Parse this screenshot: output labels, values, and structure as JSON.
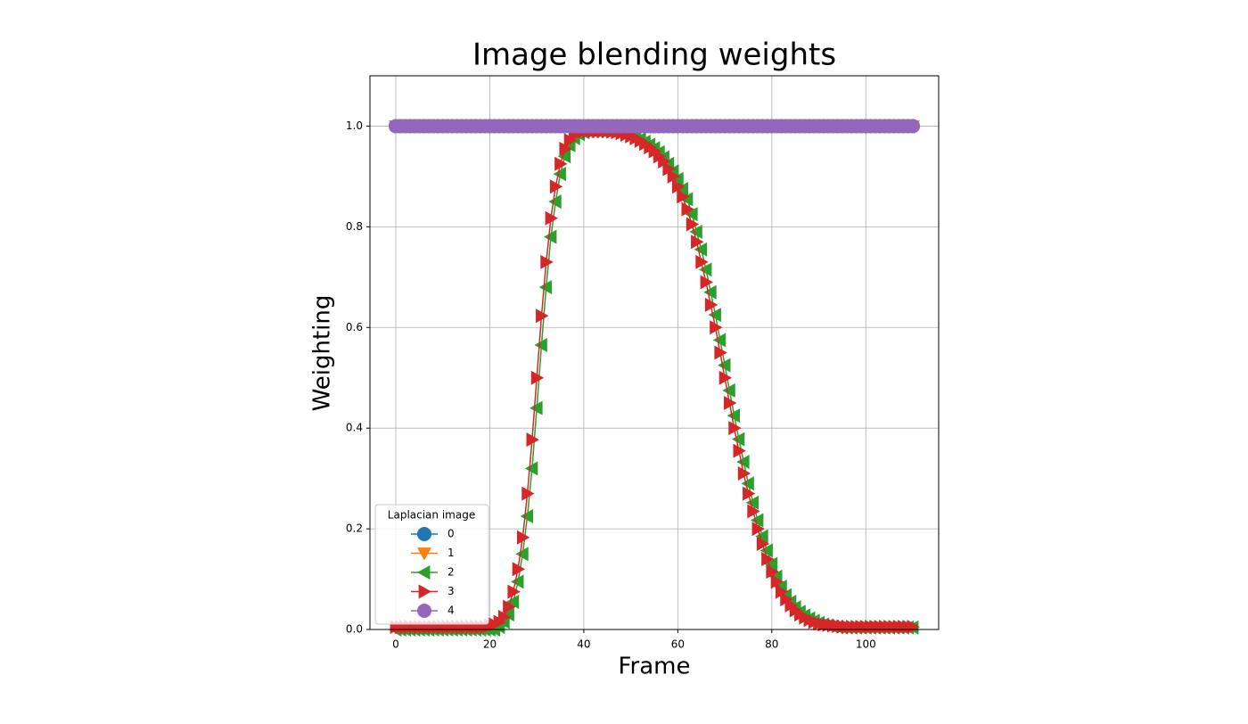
{
  "chart_data": {
    "type": "line",
    "title": "Image blending weights",
    "x_label": "Frame",
    "y_label": "Weighting",
    "x": [
      0,
      1,
      2,
      3,
      4,
      5,
      6,
      7,
      8,
      9,
      10,
      11,
      12,
      13,
      14,
      15,
      16,
      17,
      18,
      19,
      20,
      21,
      22,
      23,
      24,
      25,
      26,
      27,
      28,
      29,
      30,
      31,
      32,
      33,
      34,
      35,
      36,
      37,
      38,
      39,
      40,
      41,
      42,
      43,
      44,
      45,
      46,
      47,
      48,
      49,
      50,
      51,
      52,
      53,
      54,
      55,
      56,
      57,
      58,
      59,
      60,
      61,
      62,
      63,
      64,
      65,
      66,
      67,
      68,
      69,
      70,
      71,
      72,
      73,
      74,
      75,
      76,
      77,
      78,
      79,
      80,
      81,
      82,
      83,
      84,
      85,
      86,
      87,
      88,
      89,
      90,
      91,
      92,
      93,
      94,
      95,
      96,
      97,
      98,
      99,
      100,
      101,
      102,
      103,
      104,
      105,
      106,
      107,
      108,
      109,
      110
    ],
    "series": [
      {
        "name": "0",
        "color": "#1f77b4",
        "marker": "o",
        "values": [
          1,
          1,
          1,
          1,
          1,
          1,
          1,
          1,
          1,
          1,
          1,
          1,
          1,
          1,
          1,
          1,
          1,
          1,
          1,
          1,
          1,
          1,
          1,
          1,
          1,
          1,
          1,
          1,
          1,
          1,
          1,
          1,
          1,
          1,
          1,
          1,
          1,
          1,
          1,
          1,
          1,
          1,
          1,
          1,
          1,
          1,
          1,
          1,
          1,
          1,
          1,
          1,
          1,
          1,
          1,
          1,
          1,
          1,
          1,
          1,
          1,
          1,
          1,
          1,
          1,
          1,
          1,
          1,
          1,
          1,
          1,
          1,
          1,
          1,
          1,
          1,
          1,
          1,
          1,
          1,
          1,
          1,
          1,
          1,
          1,
          1,
          1,
          1,
          1,
          1,
          1,
          1,
          1,
          1,
          1,
          1,
          1,
          1,
          1,
          1,
          1,
          1,
          1,
          1,
          1,
          1,
          1,
          1,
          1,
          1,
          1
        ]
      },
      {
        "name": "1",
        "color": "#ff7f0e",
        "marker": "v",
        "values": [
          1,
          1,
          1,
          1,
          1,
          1,
          1,
          1,
          1,
          1,
          1,
          1,
          1,
          1,
          1,
          1,
          1,
          1,
          1,
          1,
          1,
          1,
          1,
          1,
          1,
          1,
          1,
          1,
          1,
          1,
          1,
          1,
          1,
          1,
          1,
          1,
          1,
          1,
          1,
          1,
          1,
          1,
          1,
          1,
          1,
          1,
          1,
          1,
          1,
          1,
          1,
          1,
          1,
          1,
          1,
          1,
          1,
          1,
          1,
          1,
          1,
          1,
          1,
          1,
          1,
          1,
          1,
          1,
          1,
          1,
          1,
          1,
          1,
          1,
          1,
          1,
          1,
          1,
          1,
          1,
          1,
          1,
          1,
          1,
          1,
          1,
          1,
          1,
          1,
          1,
          1,
          1,
          1,
          1,
          1,
          1,
          1,
          1,
          1,
          1,
          1,
          1,
          1,
          1,
          1,
          1,
          1,
          1,
          1,
          1,
          1
        ]
      },
      {
        "name": "2",
        "color": "#2ca02c",
        "marker": "<",
        "values": [
          0,
          0,
          0,
          0,
          0,
          0,
          0,
          0,
          0,
          0,
          0,
          0,
          0,
          0,
          0,
          0,
          0,
          0,
          0,
          0,
          0,
          0,
          0.005,
          0.015,
          0.03,
          0.055,
          0.095,
          0.15,
          0.225,
          0.32,
          0.44,
          0.565,
          0.68,
          0.78,
          0.85,
          0.905,
          0.94,
          0.962,
          0.976,
          0.984,
          0.988,
          0.99,
          0.99,
          0.99,
          0.99,
          0.99,
          0.99,
          0.989,
          0.987,
          0.985,
          0.982,
          0.978,
          0.974,
          0.969,
          0.963,
          0.956,
          0.948,
          0.938,
          0.925,
          0.91,
          0.895,
          0.875,
          0.855,
          0.825,
          0.79,
          0.755,
          0.715,
          0.67,
          0.625,
          0.575,
          0.525,
          0.475,
          0.425,
          0.378,
          0.333,
          0.29,
          0.252,
          0.217,
          0.185,
          0.157,
          0.13,
          0.105,
          0.085,
          0.068,
          0.055,
          0.044,
          0.035,
          0.028,
          0.022,
          0.017,
          0.013,
          0.01,
          0.008,
          0.006,
          0.005,
          0.004,
          0.004,
          0.004,
          0.004,
          0.004,
          0.004,
          0.004,
          0.004,
          0.004,
          0.004,
          0.004,
          0.004,
          0.004,
          0.004,
          0.004,
          0.004
        ]
      },
      {
        "name": "3",
        "color": "#d62728",
        "marker": ">",
        "values": [
          0.005,
          0.005,
          0.005,
          0.005,
          0.005,
          0.005,
          0.005,
          0.005,
          0.005,
          0.005,
          0.005,
          0.005,
          0.005,
          0.005,
          0.005,
          0.005,
          0.005,
          0.005,
          0.005,
          0.005,
          0.008,
          0.01,
          0.015,
          0.025,
          0.045,
          0.075,
          0.12,
          0.183,
          0.27,
          0.377,
          0.5,
          0.623,
          0.73,
          0.817,
          0.88,
          0.925,
          0.955,
          0.972,
          0.982,
          0.988,
          0.99,
          0.99,
          0.99,
          0.99,
          0.99,
          0.99,
          0.989,
          0.988,
          0.986,
          0.983,
          0.98,
          0.976,
          0.971,
          0.965,
          0.958,
          0.95,
          0.94,
          0.93,
          0.915,
          0.9,
          0.88,
          0.86,
          0.835,
          0.805,
          0.77,
          0.73,
          0.69,
          0.645,
          0.6,
          0.55,
          0.5,
          0.45,
          0.4,
          0.355,
          0.31,
          0.27,
          0.235,
          0.2,
          0.17,
          0.14,
          0.115,
          0.095,
          0.075,
          0.06,
          0.048,
          0.038,
          0.03,
          0.024,
          0.019,
          0.015,
          0.012,
          0.01,
          0.009,
          0.008,
          0.007,
          0.006,
          0.005,
          0.005,
          0.005,
          0.005,
          0.005,
          0.005,
          0.005,
          0.005,
          0.005,
          0.005,
          0.005,
          0.005,
          0.005,
          0.005,
          0.005
        ]
      },
      {
        "name": "4",
        "color": "#9467bd",
        "marker": "o",
        "values": [
          1,
          1,
          1,
          1,
          1,
          1,
          1,
          1,
          1,
          1,
          1,
          1,
          1,
          1,
          1,
          1,
          1,
          1,
          1,
          1,
          1,
          1,
          1,
          1,
          1,
          1,
          1,
          1,
          1,
          1,
          1,
          1,
          1,
          1,
          1,
          1,
          1,
          1,
          1,
          1,
          1,
          1,
          1,
          1,
          1,
          1,
          1,
          1,
          1,
          1,
          1,
          1,
          1,
          1,
          1,
          1,
          1,
          1,
          1,
          1,
          1,
          1,
          1,
          1,
          1,
          1,
          1,
          1,
          1,
          1,
          1,
          1,
          1,
          1,
          1,
          1,
          1,
          1,
          1,
          1,
          1,
          1,
          1,
          1,
          1,
          1,
          1,
          1,
          1,
          1,
          1,
          1,
          1,
          1,
          1,
          1,
          1,
          1,
          1,
          1,
          1,
          1,
          1,
          1,
          1,
          1,
          1,
          1,
          1,
          1,
          1
        ]
      }
    ],
    "xlim": [
      -5.5,
      115.5
    ],
    "xticks": [
      0,
      20,
      40,
      60,
      80,
      100
    ],
    "ylim": [
      0,
      1.1
    ],
    "yticks": [
      {
        "value": 0,
        "label": "0.0"
      },
      0.2,
      0.4,
      0.6,
      0.8,
      {
        "value": 1,
        "label": "1.0"
      }
    ],
    "grid": true,
    "legend": {
      "title": "Laplacian image",
      "loc": "lower left"
    }
  }
}
